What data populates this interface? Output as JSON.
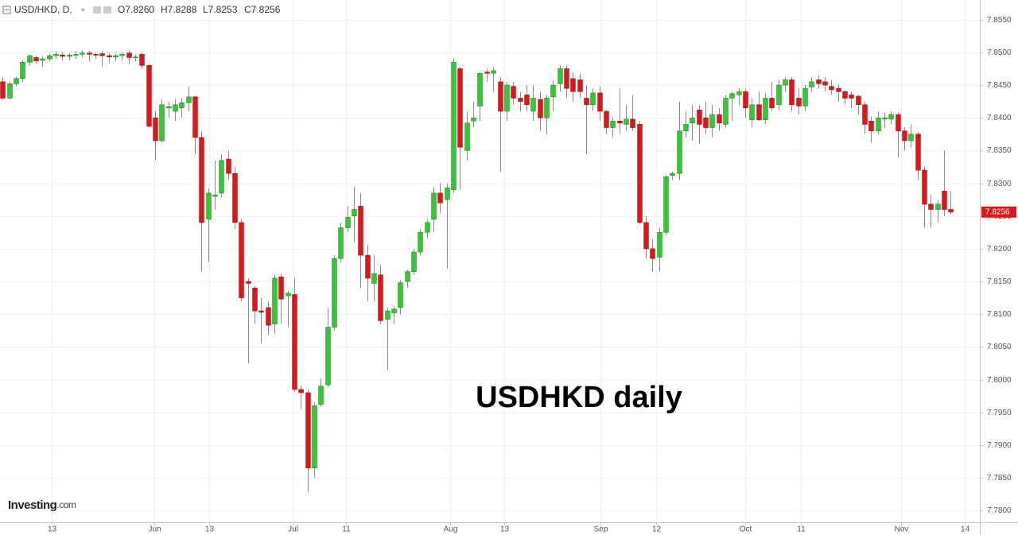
{
  "chart_data": {
    "type": "candlestick",
    "title": "USD/HKD, D,",
    "ohlc_header": [
      "O7.8260",
      "H7.8288",
      "L7.8253",
      "C7.8256"
    ],
    "annotation": "USDHKD daily",
    "watermark": [
      "Investing",
      ".com"
    ],
    "up_color": "#3ac43a",
    "down_color": "#d7191c",
    "wick_color": "#8a8a8a",
    "grid": true,
    "xlim": [
      -0.4,
      147.4
    ],
    "xticks": [
      {
        "value": 7.4,
        "label": "13"
      },
      {
        "value": 22.9,
        "label": "Jun"
      },
      {
        "value": 31.2,
        "label": "13"
      },
      {
        "value": 43.8,
        "label": "Jul"
      },
      {
        "value": 51.8,
        "label": "11"
      },
      {
        "value": 67.5,
        "label": "Aug"
      },
      {
        "value": 75.7,
        "label": "13"
      },
      {
        "value": 90.2,
        "label": "Sep"
      },
      {
        "value": 98.6,
        "label": "12"
      },
      {
        "value": 112,
        "label": "Oct"
      },
      {
        "value": 120.4,
        "label": "11"
      },
      {
        "value": 135.5,
        "label": "Nov"
      },
      {
        "value": 145.1,
        "label": "14"
      }
    ],
    "ylim": [
      7.7782,
      7.858
    ],
    "yticks": [
      {
        "value": 7.78,
        "label": "7.7800"
      },
      {
        "value": 7.785,
        "label": "7.7850"
      },
      {
        "value": 7.79,
        "label": "7.7900"
      },
      {
        "value": 7.795,
        "label": "7.7950"
      },
      {
        "value": 7.8,
        "label": "7.8000"
      },
      {
        "value": 7.805,
        "label": "7.8050"
      },
      {
        "value": 7.81,
        "label": "7.8100"
      },
      {
        "value": 7.815,
        "label": "7.8150"
      },
      {
        "value": 7.82,
        "label": "7.8200"
      },
      {
        "value": 7.825,
        "label": "7.8250"
      },
      {
        "value": 7.83,
        "label": "7.8300"
      },
      {
        "value": 7.835,
        "label": "7.8350"
      },
      {
        "value": 7.84,
        "label": "7.8400"
      },
      {
        "value": 7.845,
        "label": "7.8450"
      },
      {
        "value": 7.85,
        "label": "7.8500"
      },
      {
        "value": 7.855,
        "label": "7.8550"
      }
    ],
    "ohlc": [
      [
        7.8455,
        7.8462,
        7.8428,
        7.843
      ],
      [
        7.843,
        7.8455,
        7.8428,
        7.8452
      ],
      [
        7.8452,
        7.8463,
        7.8448,
        7.846
      ],
      [
        7.846,
        7.8488,
        7.8455,
        7.8485
      ],
      [
        7.8485,
        7.8497,
        7.848,
        7.8495
      ],
      [
        7.8492,
        7.8495,
        7.8482,
        7.8487
      ],
      [
        7.8488,
        7.8494,
        7.8478,
        7.849
      ],
      [
        7.849,
        7.8498,
        7.8486,
        7.8495
      ],
      [
        7.8495,
        7.8502,
        7.849,
        7.8497
      ],
      [
        7.8496,
        7.85,
        7.8488,
        7.8494
      ],
      [
        7.8494,
        7.8499,
        7.8488,
        7.8496
      ],
      [
        7.8496,
        7.8502,
        7.849,
        7.8497
      ],
      [
        7.8497,
        7.8503,
        7.8492,
        7.8499
      ],
      [
        7.8499,
        7.8502,
        7.8486,
        7.8497
      ],
      [
        7.8497,
        7.85,
        7.849,
        7.8496
      ],
      [
        7.8498,
        7.8502,
        7.8478,
        7.8495
      ],
      [
        7.8495,
        7.8499,
        7.8484,
        7.8493
      ],
      [
        7.8493,
        7.8498,
        7.8486,
        7.8495
      ],
      [
        7.8495,
        7.85,
        7.8488,
        7.8497
      ],
      [
        7.8499,
        7.8503,
        7.8482,
        7.8492
      ],
      [
        7.8492,
        7.8497,
        7.8486,
        7.8493
      ],
      [
        7.8497,
        7.85,
        7.8475,
        7.848
      ],
      [
        7.848,
        7.8483,
        7.8385,
        7.8387
      ],
      [
        7.84,
        7.841,
        7.8335,
        7.8365
      ],
      [
        7.8365,
        7.8428,
        7.8362,
        7.842
      ],
      [
        7.8415,
        7.8425,
        7.84,
        7.8417
      ],
      [
        7.841,
        7.8428,
        7.8395,
        7.842
      ],
      [
        7.8415,
        7.843,
        7.84,
        7.8423
      ],
      [
        7.8423,
        7.8448,
        7.841,
        7.8432
      ],
      [
        7.8432,
        7.8434,
        7.8345,
        7.837
      ],
      [
        7.837,
        7.838,
        7.8165,
        7.824
      ],
      [
        7.8245,
        7.8292,
        7.818,
        7.8285
      ],
      [
        7.828,
        7.8335,
        7.826,
        7.8282
      ],
      [
        7.8285,
        7.8345,
        7.8278,
        7.8335
      ],
      [
        7.8337,
        7.835,
        7.8305,
        7.8315
      ],
      [
        7.8315,
        7.8325,
        7.823,
        7.824
      ],
      [
        7.824,
        7.8245,
        7.812,
        7.8125
      ],
      [
        7.815,
        7.8155,
        7.8025,
        7.8147
      ],
      [
        7.814,
        7.8143,
        7.8085,
        7.8105
      ],
      [
        7.8105,
        7.8125,
        7.8055,
        7.8103
      ],
      [
        7.811,
        7.812,
        7.8068,
        7.8083
      ],
      [
        7.8085,
        7.816,
        7.807,
        7.8155
      ],
      [
        7.8157,
        7.8162,
        7.8085,
        7.8123
      ],
      [
        7.8128,
        7.8135,
        7.808,
        7.8132
      ],
      [
        7.813,
        7.8155,
        7.7982,
        7.7985
      ],
      [
        7.7985,
        7.799,
        7.7955,
        7.798
      ],
      [
        7.798,
        7.7985,
        7.7828,
        7.7865
      ],
      [
        7.7865,
        7.7965,
        7.785,
        7.796
      ],
      [
        7.7962,
        7.8002,
        7.7958,
        7.799
      ],
      [
        7.7992,
        7.811,
        7.7988,
        7.808
      ],
      [
        7.808,
        7.819,
        7.8075,
        7.8185
      ],
      [
        7.8185,
        7.824,
        7.818,
        7.8232
      ],
      [
        7.8232,
        7.8265,
        7.8225,
        7.8248
      ],
      [
        7.825,
        7.8295,
        7.821,
        7.826
      ],
      [
        7.8265,
        7.8285,
        7.814,
        7.819
      ],
      [
        7.819,
        7.8205,
        7.812,
        7.8155
      ],
      [
        7.8147,
        7.819,
        7.812,
        7.8162
      ],
      [
        7.816,
        7.8175,
        7.8085,
        7.809
      ],
      [
        7.8092,
        7.811,
        7.8015,
        7.8105
      ],
      [
        7.8102,
        7.8112,
        7.8085,
        7.8108
      ],
      [
        7.811,
        7.8152,
        7.81,
        7.8148
      ],
      [
        7.815,
        7.8168,
        7.814,
        7.8165
      ],
      [
        7.8165,
        7.82,
        7.816,
        7.8195
      ],
      [
        7.8195,
        7.823,
        7.819,
        7.8225
      ],
      [
        7.8225,
        7.8245,
        7.8215,
        7.824
      ],
      [
        7.8245,
        7.8295,
        7.8225,
        7.8285
      ],
      [
        7.8285,
        7.83,
        7.8255,
        7.827
      ],
      [
        7.8275,
        7.83,
        7.817,
        7.8293
      ],
      [
        7.829,
        7.849,
        7.8285,
        7.8485
      ],
      [
        7.8475,
        7.8478,
        7.829,
        7.8355
      ],
      [
        7.835,
        7.841,
        7.8335,
        7.8392
      ],
      [
        7.8395,
        7.8425,
        7.8385,
        7.84
      ],
      [
        7.8418,
        7.847,
        7.8395,
        7.8468
      ],
      [
        7.847,
        7.8475,
        7.8455,
        7.8468
      ],
      [
        7.8468,
        7.8477,
        7.844,
        7.8472
      ],
      [
        7.8455,
        7.8462,
        7.8318,
        7.841
      ],
      [
        7.841,
        7.8455,
        7.8395,
        7.845
      ],
      [
        7.8448,
        7.8455,
        7.842,
        7.843
      ],
      [
        7.843,
        7.844,
        7.841,
        7.8425
      ],
      [
        7.8435,
        7.845,
        7.841,
        7.842
      ],
      [
        7.841,
        7.845,
        7.8395,
        7.843
      ],
      [
        7.8428,
        7.844,
        7.838,
        7.84
      ],
      [
        7.84,
        7.8435,
        7.8375,
        7.843
      ],
      [
        7.8432,
        7.8458,
        7.841,
        7.845
      ],
      [
        7.8452,
        7.848,
        7.844,
        7.8475
      ],
      [
        7.8475,
        7.848,
        7.843,
        7.8445
      ],
      [
        7.846,
        7.847,
        7.8425,
        7.844
      ],
      [
        7.8458,
        7.8468,
        7.843,
        7.844
      ],
      [
        7.843,
        7.845,
        7.8345,
        7.842
      ],
      [
        7.842,
        7.8445,
        7.841,
        7.8438
      ],
      [
        7.8438,
        7.8448,
        7.8395,
        7.841
      ],
      [
        7.841,
        7.8412,
        7.8375,
        7.8385
      ],
      [
        7.8385,
        7.84,
        7.837,
        7.8395
      ],
      [
        7.8395,
        7.8445,
        7.8375,
        7.8392
      ],
      [
        7.839,
        7.842,
        7.838,
        7.8398
      ],
      [
        7.8398,
        7.8435,
        7.838,
        7.8385
      ],
      [
        7.839,
        7.8395,
        7.8238,
        7.824
      ],
      [
        7.824,
        7.825,
        7.8185,
        7.82
      ],
      [
        7.82,
        7.8215,
        7.8165,
        7.8185
      ],
      [
        7.8187,
        7.8232,
        7.8165,
        7.8225
      ],
      [
        7.8225,
        7.8312,
        7.822,
        7.831
      ],
      [
        7.8312,
        7.8318,
        7.8305,
        7.8315
      ],
      [
        7.8315,
        7.8425,
        7.8305,
        7.838
      ],
      [
        7.838,
        7.841,
        7.837,
        7.839
      ],
      [
        7.8392,
        7.842,
        7.8365,
        7.84
      ],
      [
        7.8412,
        7.842,
        7.836,
        7.839
      ],
      [
        7.84,
        7.8425,
        7.8375,
        7.8385
      ],
      [
        7.8385,
        7.842,
        7.837,
        7.8405
      ],
      [
        7.8405,
        7.8415,
        7.838,
        7.8392
      ],
      [
        7.839,
        7.8435,
        7.8385,
        7.843
      ],
      [
        7.843,
        7.844,
        7.8395,
        7.8437
      ],
      [
        7.8435,
        7.8445,
        7.842,
        7.844
      ],
      [
        7.844,
        7.8445,
        7.84,
        7.8415
      ],
      [
        7.8397,
        7.843,
        7.8385,
        7.842
      ],
      [
        7.842,
        7.844,
        7.8395,
        7.8397
      ],
      [
        7.8397,
        7.8438,
        7.839,
        7.843
      ],
      [
        7.843,
        7.8455,
        7.841,
        7.8415
      ],
      [
        7.842,
        7.8458,
        7.8412,
        7.845
      ],
      [
        7.845,
        7.8462,
        7.844,
        7.8458
      ],
      [
        7.8458,
        7.8462,
        7.841,
        7.842
      ],
      [
        7.843,
        7.8445,
        7.8405,
        7.8418
      ],
      [
        7.8418,
        7.845,
        7.841,
        7.8445
      ],
      [
        7.8447,
        7.8462,
        7.844,
        7.8455
      ],
      [
        7.8458,
        7.8465,
        7.8445,
        7.8452
      ],
      [
        7.8455,
        7.8462,
        7.844,
        7.845
      ],
      [
        7.8448,
        7.8458,
        7.8435,
        7.8443
      ],
      [
        7.8445,
        7.845,
        7.8425,
        7.844
      ],
      [
        7.844,
        7.8442,
        7.842,
        7.843
      ],
      [
        7.8435,
        7.844,
        7.8415,
        7.843
      ],
      [
        7.8433,
        7.8435,
        7.8405,
        7.842
      ],
      [
        7.842,
        7.8425,
        7.8375,
        7.839
      ],
      [
        7.8395,
        7.8402,
        7.8362,
        7.838
      ],
      [
        7.838,
        7.841,
        7.8375,
        7.84
      ],
      [
        7.8398,
        7.8408,
        7.8385,
        7.84
      ],
      [
        7.8398,
        7.841,
        7.839,
        7.8405
      ],
      [
        7.8405,
        7.8408,
        7.834,
        7.838
      ],
      [
        7.838,
        7.8385,
        7.835,
        7.8365
      ],
      [
        7.8365,
        7.839,
        7.8355,
        7.8375
      ],
      [
        7.8375,
        7.8378,
        7.8305,
        7.832
      ],
      [
        7.832,
        7.8325,
        7.8232,
        7.8268
      ],
      [
        7.8268,
        7.8282,
        7.8232,
        7.826
      ],
      [
        7.826,
        7.8275,
        7.824,
        7.8268
      ],
      [
        7.8288,
        7.835,
        7.825,
        7.826
      ],
      [
        7.826,
        7.8288,
        7.8253,
        7.8256
      ]
    ]
  }
}
